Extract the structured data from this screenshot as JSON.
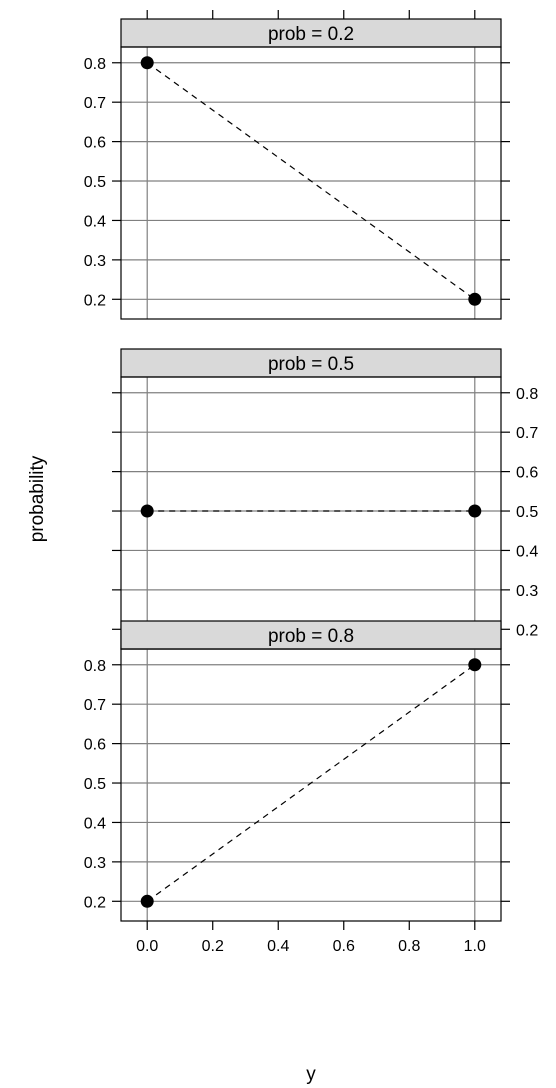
{
  "chart_data": {
    "type": "line",
    "title": "",
    "xlabel": "y",
    "ylabel": "probability",
    "xlim": [
      -0.08,
      1.08
    ],
    "ylim": [
      0.15,
      0.84
    ],
    "x_ticks": [
      "0.0",
      "0.2",
      "0.4",
      "0.6",
      "0.8",
      "1.0"
    ],
    "y_ticks": [
      "0.2",
      "0.3",
      "0.4",
      "0.5",
      "0.6",
      "0.7",
      "0.8"
    ],
    "grid": true,
    "panels": [
      {
        "strip": "prob = 0.2",
        "x": [
          0,
          1
        ],
        "y": [
          0.8,
          0.2
        ],
        "y_axis_side": "left"
      },
      {
        "strip": "prob = 0.5",
        "x": [
          0,
          1
        ],
        "y": [
          0.5,
          0.5
        ],
        "y_axis_side": "right"
      },
      {
        "strip": "prob = 0.8",
        "x": [
          0,
          1
        ],
        "y": [
          0.2,
          0.8
        ],
        "y_axis_side": "left"
      }
    ],
    "colors": {
      "strip": "#d9d9d9",
      "grid": "#808080",
      "point": "#000000",
      "line": "#000000"
    }
  }
}
